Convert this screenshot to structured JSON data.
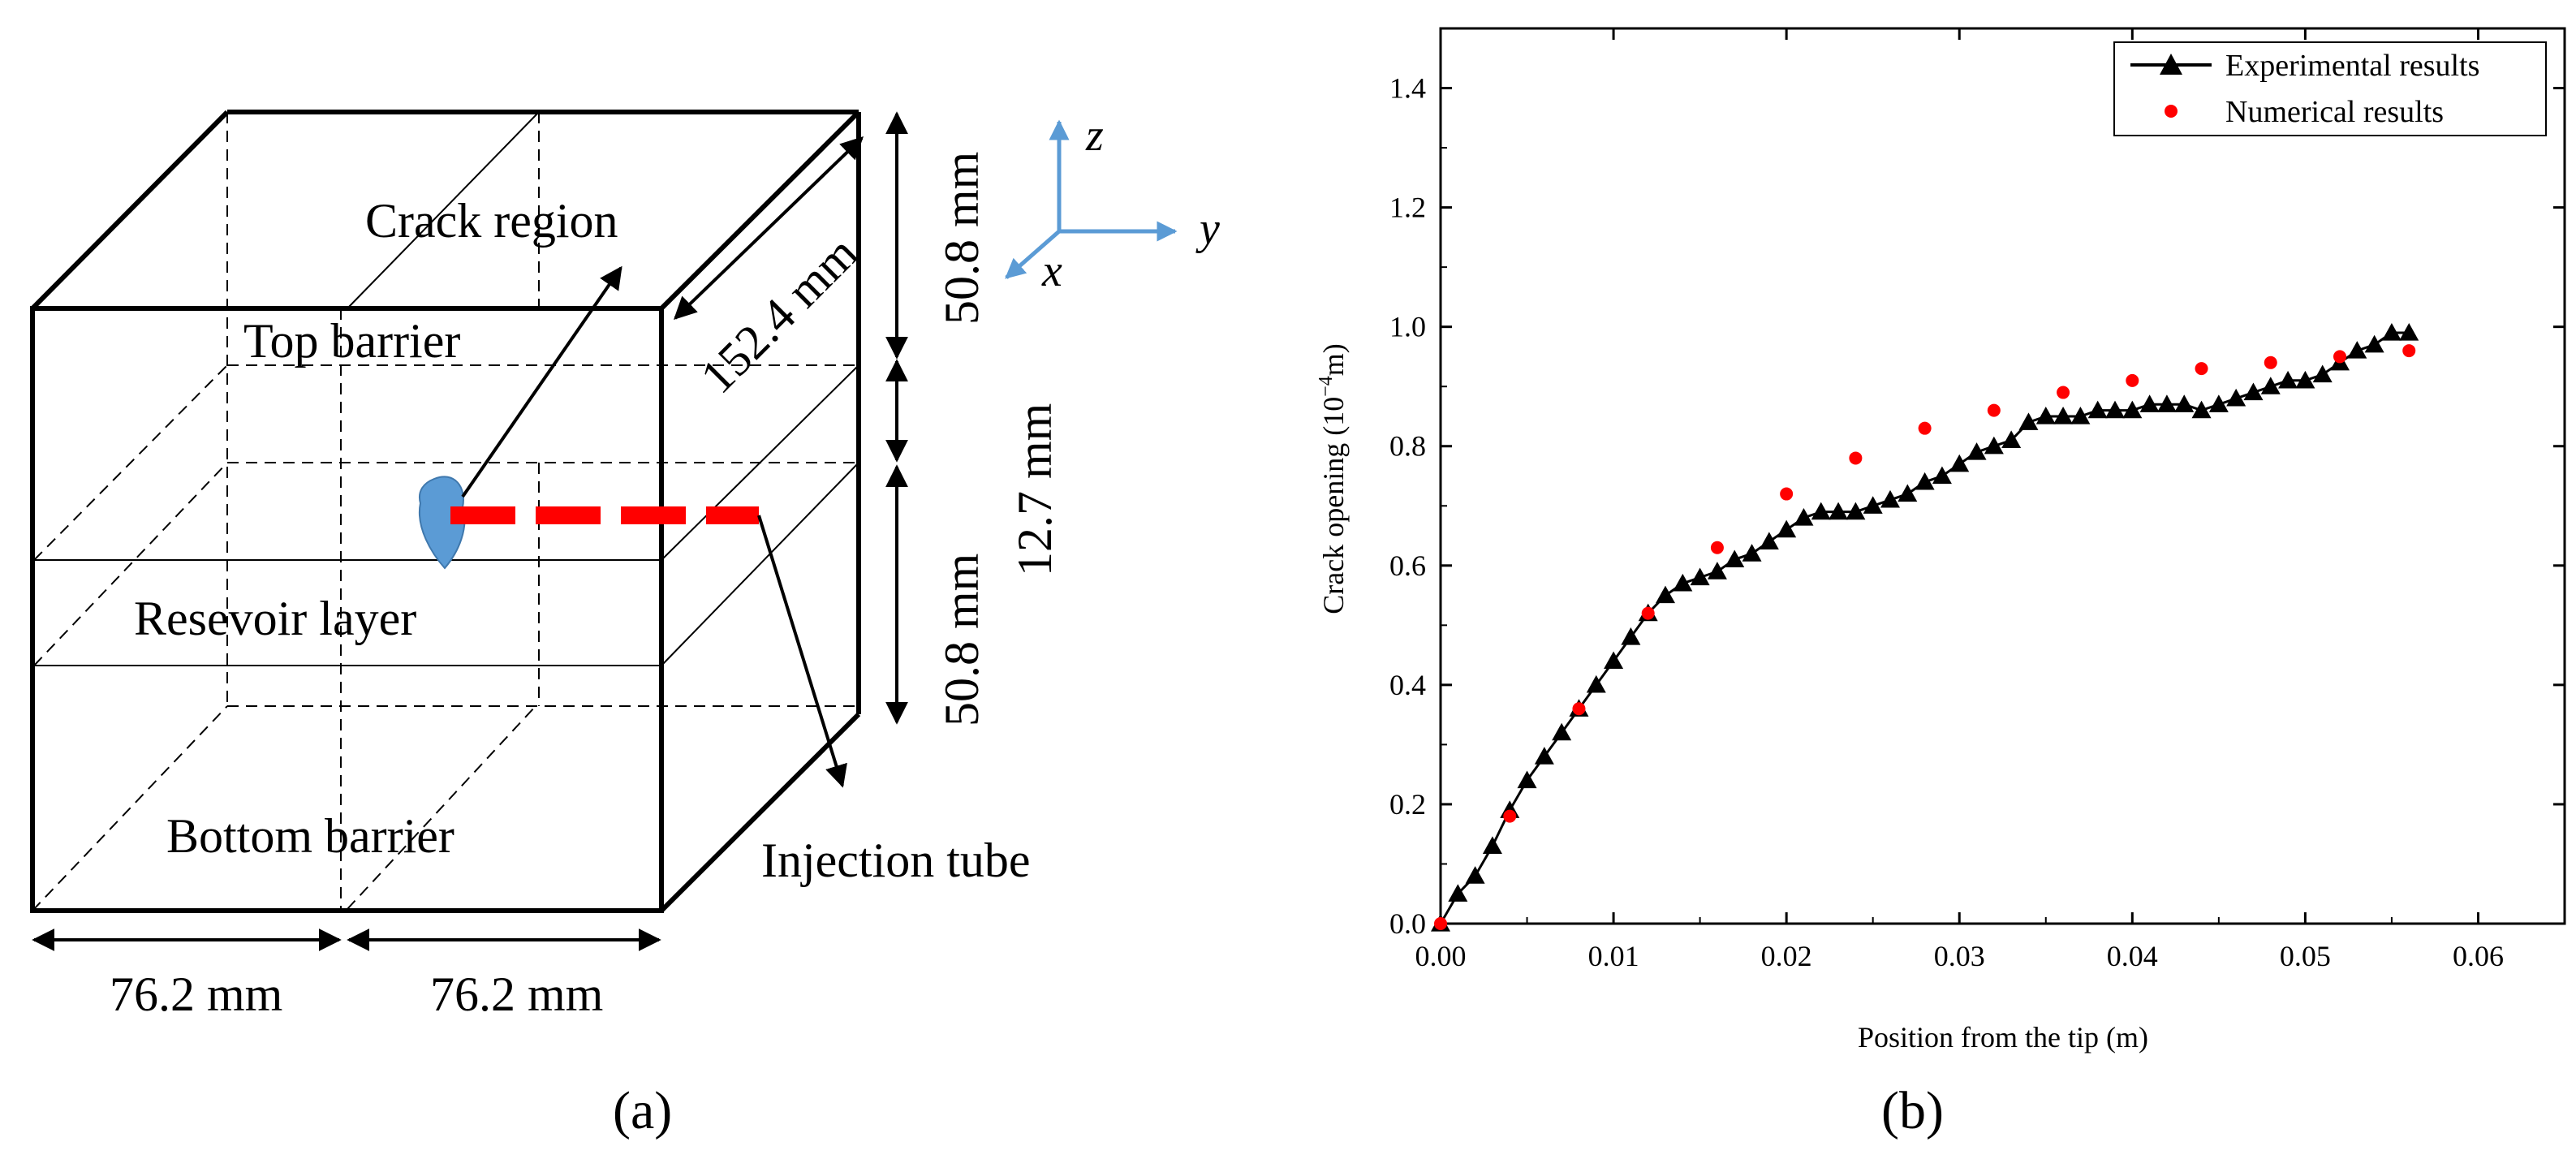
{
  "panel_a": {
    "caption": "(a)",
    "labels": {
      "crack_region": "Crack region",
      "top_barrier": "Top barrier",
      "reservoir_layer": "Resevoir layer",
      "bottom_barrier": "Bottom barrier",
      "injection_tube": "Injection tube"
    },
    "dimensions": {
      "depth": "152.4 mm",
      "top_height": "50.8 mm",
      "middle_height": "12.7 mm",
      "bottom_height": "50.8 mm",
      "width_left": "76.2 mm",
      "width_right": "76.2 mm"
    },
    "axes": {
      "z": "z",
      "y": "y",
      "x": "x"
    },
    "colors": {
      "crack": "#5B9BD5",
      "tube": "#FF0000",
      "axis": "#5B9BD5"
    }
  },
  "panel_b": {
    "caption": "(b)",
    "ylabel_prefix": "Crack opening (10",
    "ylabel_exp": "−4",
    "ylabel_suffix": "m)"
  },
  "chart_data": {
    "type": "scatter",
    "title": "",
    "xlabel": "Position from the tip (m)",
    "ylabel": "Crack opening (10^-4 m)",
    "xlim": [
      0,
      0.065
    ],
    "ylim": [
      0,
      1.5
    ],
    "xticks": [
      0.0,
      0.01,
      0.02,
      0.03,
      0.04,
      0.05,
      0.06
    ],
    "xtick_labels": [
      "0.00",
      "0.01",
      "0.02",
      "0.03",
      "0.04",
      "0.05",
      "0.06"
    ],
    "yticks": [
      0.0,
      0.2,
      0.4,
      0.6,
      0.8,
      1.0,
      1.2,
      1.4
    ],
    "ytick_labels": [
      "0.0",
      "0.2",
      "0.4",
      "0.6",
      "0.8",
      "1.0",
      "1.2",
      "1.4"
    ],
    "legend_position": "top-right",
    "series": [
      {
        "name": "Experimental results",
        "style": "line-triangle",
        "color": "#000000",
        "x": [
          0.0,
          0.001,
          0.002,
          0.003,
          0.004,
          0.005,
          0.006,
          0.007,
          0.008,
          0.009,
          0.01,
          0.011,
          0.012,
          0.013,
          0.014,
          0.015,
          0.016,
          0.017,
          0.018,
          0.019,
          0.02,
          0.021,
          0.022,
          0.023,
          0.024,
          0.025,
          0.026,
          0.027,
          0.028,
          0.029,
          0.03,
          0.031,
          0.032,
          0.033,
          0.034,
          0.035,
          0.036,
          0.037,
          0.038,
          0.039,
          0.04,
          0.041,
          0.042,
          0.043,
          0.044,
          0.045,
          0.046,
          0.047,
          0.048,
          0.049,
          0.05,
          0.051,
          0.052,
          0.053,
          0.054,
          0.055,
          0.056
        ],
        "y": [
          0.0,
          0.05,
          0.08,
          0.13,
          0.19,
          0.24,
          0.28,
          0.32,
          0.36,
          0.4,
          0.44,
          0.48,
          0.52,
          0.55,
          0.57,
          0.58,
          0.59,
          0.61,
          0.62,
          0.64,
          0.66,
          0.68,
          0.69,
          0.69,
          0.69,
          0.7,
          0.71,
          0.72,
          0.74,
          0.75,
          0.77,
          0.79,
          0.8,
          0.81,
          0.84,
          0.85,
          0.85,
          0.85,
          0.86,
          0.86,
          0.86,
          0.87,
          0.87,
          0.87,
          0.86,
          0.87,
          0.88,
          0.89,
          0.9,
          0.91,
          0.91,
          0.92,
          0.94,
          0.96,
          0.97,
          0.99,
          0.99
        ]
      },
      {
        "name": "Numerical results",
        "style": "dot",
        "color": "#FF0000",
        "x": [
          0.0,
          0.004,
          0.008,
          0.012,
          0.016,
          0.02,
          0.024,
          0.028,
          0.032,
          0.036,
          0.04,
          0.044,
          0.048,
          0.052,
          0.056
        ],
        "y": [
          0.0,
          0.18,
          0.36,
          0.52,
          0.63,
          0.72,
          0.78,
          0.83,
          0.86,
          0.89,
          0.91,
          0.93,
          0.94,
          0.95,
          0.96
        ]
      }
    ]
  }
}
